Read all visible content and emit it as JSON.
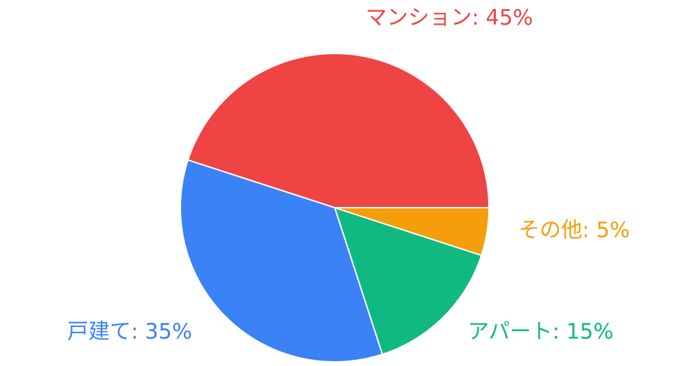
{
  "chart_data": {
    "type": "pie",
    "categories": [
      "マンション",
      "アパート",
      "その他",
      "戸建て"
    ],
    "values": [
      45,
      15,
      5,
      35
    ],
    "labels": [
      "マンション: 45%",
      "アパート: 15%",
      "その他: 5%",
      "戸建て: 35%"
    ],
    "colors": [
      "#ef4444",
      "#10b981",
      "#f59e0b",
      "#3b82f6"
    ],
    "legend": "none",
    "start_angle_deg": 0,
    "direction": "counterclockwise-for-first-slice"
  }
}
